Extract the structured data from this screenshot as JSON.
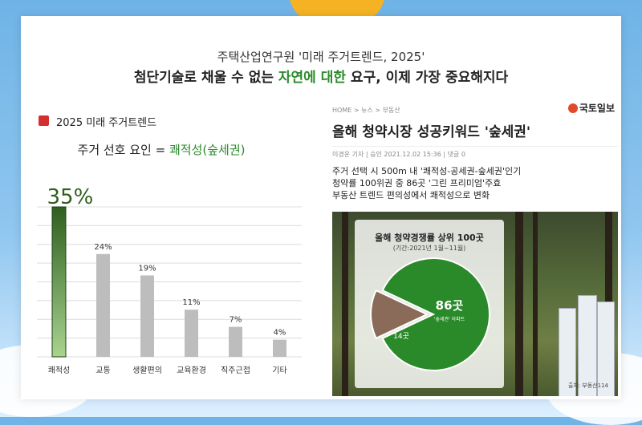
{
  "header": {
    "line1": "주택산업연구원 '미래 주거트렌드, 2025'",
    "line2_pre": "첨단기술로 채울 수 없는 ",
    "line2_hl": "자연에 대한",
    "line2_post": " 요구, 이제 가장 중요해지다"
  },
  "legend_label": "2025 미래 주거트렌드",
  "subtitle_pre": "주거 선호 요인 = ",
  "subtitle_hl": "쾌적성(숲세권)",
  "chart_data": {
    "type": "bar",
    "categories": [
      "쾌적성",
      "교통",
      "생활편의",
      "교육환경",
      "직주근접",
      "기타"
    ],
    "values": [
      35,
      24,
      19,
      11,
      7,
      4
    ],
    "value_labels": [
      "35%",
      "24%",
      "19%",
      "11%",
      "7%",
      "4%"
    ],
    "highlight_index": 0,
    "ylim": [
      0,
      35
    ],
    "colors": {
      "highlight_top": "#2f5f1e",
      "highlight_bottom": "#a8d48f",
      "bar": "#bdbdbd"
    }
  },
  "news": {
    "breadcrumb": "HOME > 뉴스 > 부동산",
    "paper": "국토일보",
    "title": "올해 청약시장 성공키워드 '숲세권'",
    "meta": "이경운 기자  |  승인 2021.12.02 15:36  |  댓글 0",
    "body": [
      "주거 선택 시 500m 내 '쾌적성-공세권-숲세권'인기",
      "청약률 100위권 중 86곳 '그린 프리미엄'주효",
      "부동산 트렌드 편의성에서 쾌적성으로 변화"
    ],
    "pie": {
      "title": "올해 청약경쟁률 상위 100곳",
      "period": "(기간:2021년 1월~11월)",
      "main_value": "86곳",
      "main_sub": "'숲세권' 아파트",
      "minor_value": "14곳",
      "values": [
        86,
        14
      ],
      "colors": [
        "#2a8a2a",
        "#8a6a58"
      ],
      "source": "출처: 부동산114"
    }
  }
}
